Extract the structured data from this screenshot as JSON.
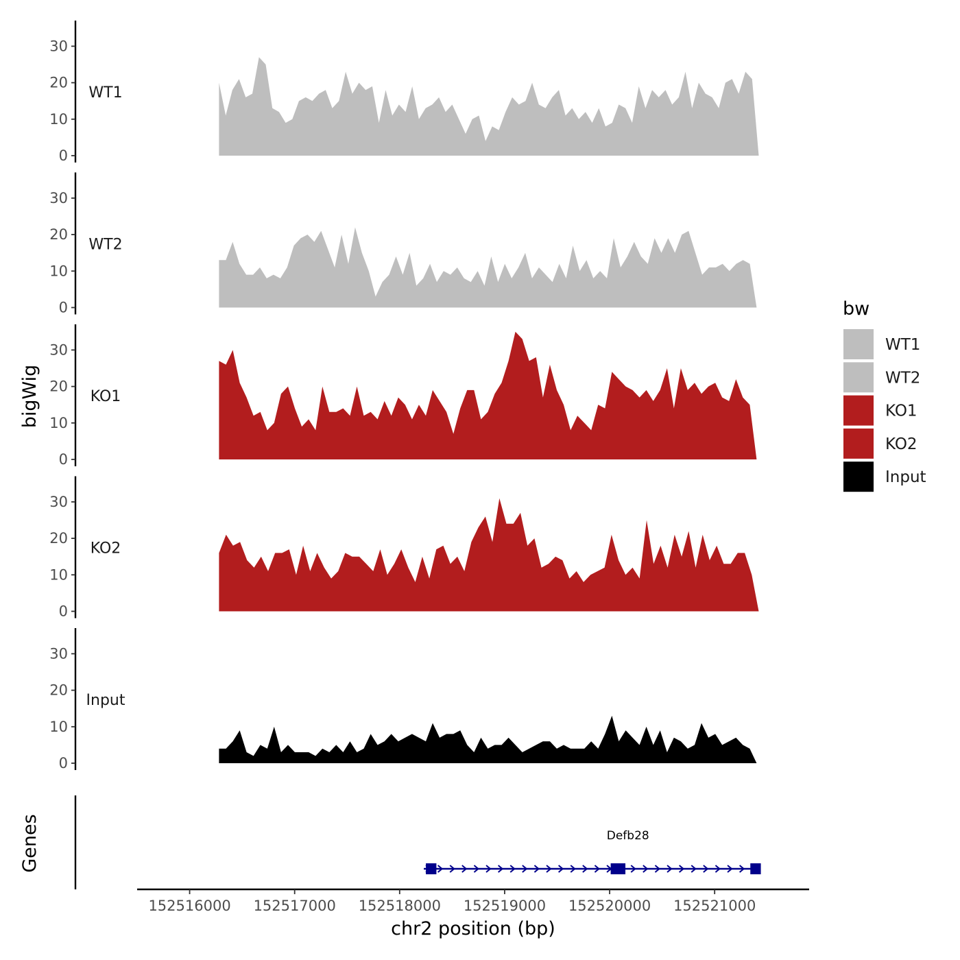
{
  "chart_data": {
    "type": "area",
    "ylabel": "bigWig",
    "xlabel": "chr2 position (bp)",
    "gene_track_label": "Genes",
    "ylim": [
      0,
      37
    ],
    "yticks": [
      0,
      10,
      20,
      30
    ],
    "xlim": [
      152515500,
      152521900
    ],
    "xticks": [
      152516000,
      152517000,
      152518000,
      152519000,
      152520000,
      152521000
    ],
    "xtick_labels": [
      "152516000",
      "152517000",
      "152518000",
      "152519000",
      "152520000",
      "152521000"
    ],
    "legend": {
      "title": "bw",
      "entries": [
        {
          "label": "WT1",
          "color": "#bebebe"
        },
        {
          "label": "WT2",
          "color": "#bebebe"
        },
        {
          "label": "KO1",
          "color": "#b21d1e"
        },
        {
          "label": "KO2",
          "color": "#b21d1e"
        },
        {
          "label": "Input",
          "color": "#000000"
        }
      ]
    },
    "series": [
      {
        "name": "WT1",
        "color": "#bebebe",
        "x_start": 152516280,
        "x_end": 152521420,
        "values": [
          20,
          11,
          18,
          21,
          16,
          17,
          27,
          25,
          13,
          12,
          9,
          10,
          15,
          16,
          15,
          17,
          18,
          13,
          15,
          23,
          17,
          20,
          18,
          19,
          9,
          18,
          11,
          14,
          12,
          19,
          10,
          13,
          14,
          16,
          12,
          14,
          10,
          6,
          10,
          11,
          4,
          8,
          7,
          12,
          16,
          14,
          15,
          20,
          14,
          13,
          16,
          18,
          11,
          13,
          10,
          12,
          9,
          13,
          8,
          9,
          14,
          13,
          9,
          19,
          13,
          18,
          16,
          18,
          14,
          16,
          23,
          13,
          20,
          17,
          16,
          13,
          20,
          21,
          17,
          23,
          21,
          0
        ]
      },
      {
        "name": "WT2",
        "color": "#bebebe",
        "x_start": 152516280,
        "x_end": 152521400,
        "values": [
          13,
          13,
          18,
          12,
          9,
          9,
          11,
          8,
          9,
          8,
          11,
          17,
          19,
          20,
          18,
          21,
          16,
          11,
          20,
          12,
          22,
          15,
          10,
          3,
          7,
          9,
          14,
          9,
          15,
          6,
          8,
          12,
          7,
          10,
          9,
          11,
          8,
          7,
          10,
          6,
          14,
          7,
          12,
          8,
          11,
          15,
          8,
          11,
          9,
          7,
          12,
          8,
          17,
          10,
          13,
          8,
          10,
          8,
          19,
          11,
          14,
          18,
          14,
          12,
          19,
          15,
          19,
          15,
          20,
          21,
          15,
          9,
          11,
          11,
          12,
          10,
          12,
          13,
          12,
          0
        ]
      },
      {
        "name": "KO1",
        "color": "#b21d1e",
        "x_start": 152516280,
        "x_end": 152521400,
        "values": [
          27,
          26,
          30,
          21,
          17,
          12,
          13,
          8,
          10,
          18,
          20,
          14,
          9,
          11,
          8,
          20,
          13,
          13,
          14,
          12,
          20,
          12,
          13,
          11,
          16,
          12,
          17,
          15,
          11,
          15,
          12,
          19,
          16,
          13,
          7,
          14,
          19,
          19,
          11,
          13,
          18,
          21,
          27,
          35,
          33,
          27,
          28,
          17,
          26,
          19,
          15,
          8,
          12,
          10,
          8,
          15,
          14,
          24,
          22,
          20,
          19,
          17,
          19,
          16,
          19,
          25,
          14,
          25,
          19,
          21,
          18,
          20,
          21,
          17,
          16,
          22,
          17,
          15,
          0
        ]
      },
      {
        "name": "KO2",
        "color": "#b21d1e",
        "x_start": 152516280,
        "x_end": 152521420,
        "values": [
          16,
          21,
          18,
          19,
          14,
          12,
          15,
          11,
          16,
          16,
          17,
          10,
          18,
          11,
          16,
          12,
          9,
          11,
          16,
          15,
          15,
          13,
          11,
          17,
          10,
          13,
          17,
          12,
          8,
          15,
          9,
          17,
          18,
          13,
          15,
          11,
          19,
          23,
          26,
          19,
          31,
          24,
          24,
          27,
          18,
          20,
          12,
          13,
          15,
          14,
          9,
          11,
          8,
          10,
          11,
          12,
          21,
          14,
          10,
          12,
          9,
          25,
          13,
          18,
          12,
          21,
          15,
          22,
          12,
          21,
          14,
          18,
          13,
          13,
          16,
          16,
          10,
          0
        ]
      },
      {
        "name": "Input",
        "color": "#000000",
        "x_start": 152516280,
        "x_end": 152521400,
        "values": [
          4,
          4,
          6,
          9,
          3,
          2,
          5,
          4,
          10,
          3,
          5,
          3,
          3,
          3,
          2,
          4,
          3,
          5,
          3,
          6,
          3,
          4,
          8,
          5,
          6,
          8,
          6,
          7,
          8,
          7,
          6,
          11,
          7,
          8,
          8,
          9,
          5,
          3,
          7,
          4,
          5,
          5,
          7,
          5,
          3,
          4,
          5,
          6,
          6,
          4,
          5,
          4,
          4,
          4,
          6,
          4,
          8,
          13,
          6,
          9,
          7,
          5,
          10,
          5,
          9,
          3,
          7,
          6,
          4,
          5,
          11,
          7,
          8,
          5,
          6,
          7,
          5,
          4,
          0
        ]
      }
    ],
    "gene": {
      "name": "Defb28",
      "color": "#00008b",
      "start": 152518230,
      "end": 152521400,
      "exons": [
        [
          152518250,
          152518350
        ],
        [
          152520010,
          152520150
        ],
        [
          152521340,
          152521440
        ]
      ]
    }
  }
}
